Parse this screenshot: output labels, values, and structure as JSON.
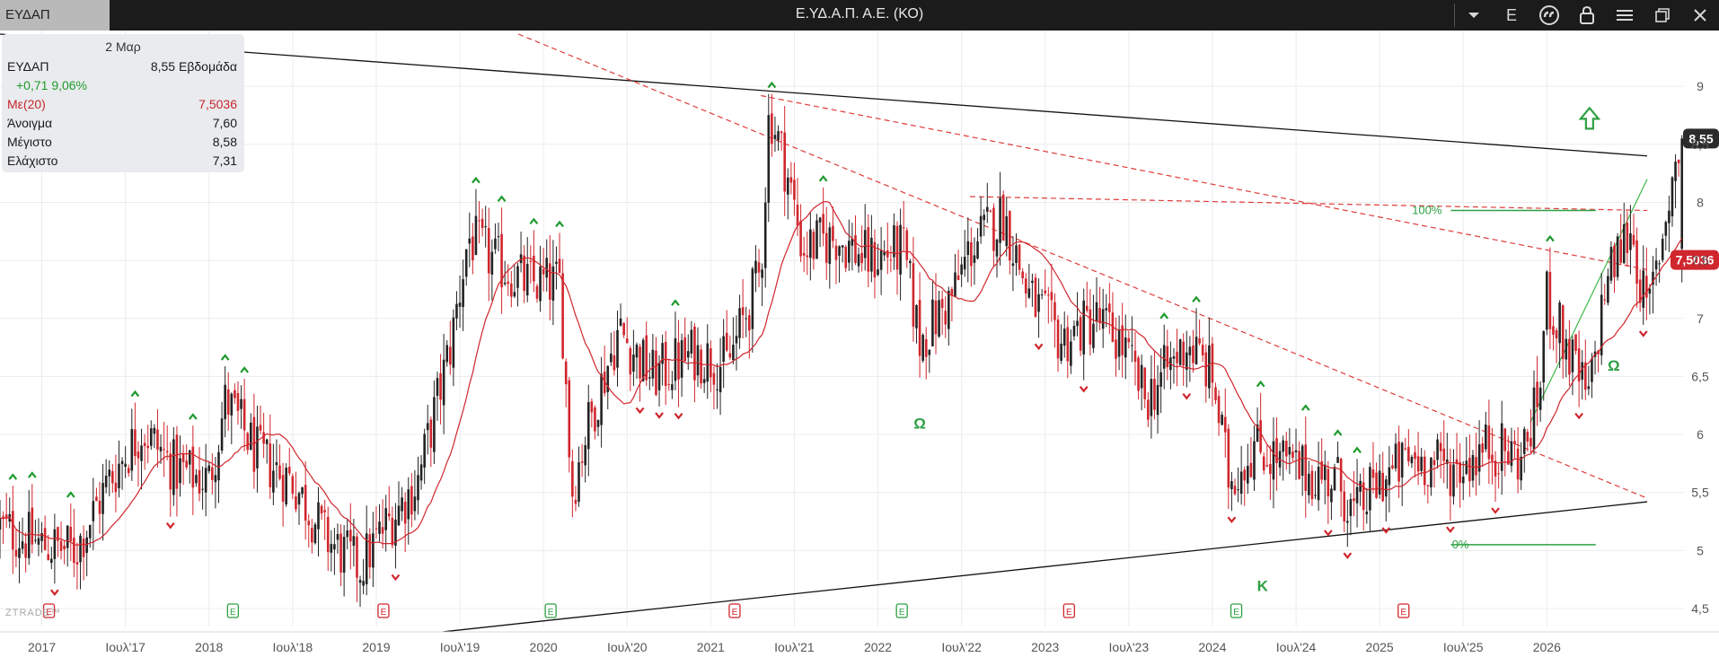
{
  "toolbar": {
    "symbol_tab": "ΕΥΔΑΠ",
    "title": "Ε.ΥΔ.Α.Π. Α.Ε. (ΚΟ)",
    "icons": [
      "dropdown-arrow-icon",
      "letter-e-icon",
      "quote-icon",
      "lock-icon",
      "hamburger-menu-icon",
      "restore-window-icon",
      "close-icon"
    ],
    "e_label": "E"
  },
  "info_panel": {
    "date": "2 Μαρ",
    "symbol": "ΕΥΔΑΠ",
    "last": "8,55 Εβδομάδα",
    "change": "+0,71 9,06%",
    "ma_label": "Με(20)",
    "ma_value": "7,5036",
    "open_label": "Άνοιγμα",
    "open_value": "7,60",
    "high_label": "Μέγιστο",
    "high_value": "8,58",
    "low_label": "Ελάχιστο",
    "low_value": "7,31"
  },
  "colors": {
    "up": "#222222",
    "down": "#d0262d",
    "ma": "#d0262d",
    "trendline": "#111111",
    "fib": "#2ea043",
    "marker_up": "#1f9a2d",
    "marker_down": "#d0262d"
  },
  "chart_data": {
    "type": "candlestick",
    "period": "weekly",
    "x_ticks": [
      "2017",
      "Ιουλ'17",
      "2018",
      "Ιουλ'18",
      "2019",
      "Ιουλ'19",
      "2020",
      "Ιουλ'20",
      "2021",
      "Ιουλ'21",
      "2022",
      "Ιουλ'22",
      "2023",
      "Ιουλ'23",
      "2024",
      "Ιουλ'24",
      "2025",
      "Ιουλ'25",
      "2026"
    ],
    "y_ticks": [
      "4,5",
      "5",
      "5,5",
      "6",
      "6,5",
      "7",
      "7,5",
      "8",
      "8,5",
      "9"
    ],
    "ylim": [
      4.3,
      9.3
    ],
    "x_start": 2016.75,
    "x_end": 2026.6,
    "last_price_label": "8,55",
    "last_price": 8.55,
    "ma_label": "7,5036",
    "ma_value": 7.5036,
    "ma_period": 20,
    "anchors": [
      {
        "x": 2016.75,
        "y": 5.2
      },
      {
        "x": 2017.0,
        "y": 5.05
      },
      {
        "x": 2017.2,
        "y": 5.0
      },
      {
        "x": 2017.4,
        "y": 5.6
      },
      {
        "x": 2017.6,
        "y": 6.05
      },
      {
        "x": 2017.8,
        "y": 5.7
      },
      {
        "x": 2018.0,
        "y": 5.6
      },
      {
        "x": 2018.1,
        "y": 6.3
      },
      {
        "x": 2018.3,
        "y": 5.8
      },
      {
        "x": 2018.5,
        "y": 5.6
      },
      {
        "x": 2018.7,
        "y": 5.1
      },
      {
        "x": 2018.9,
        "y": 4.85
      },
      {
        "x": 2019.05,
        "y": 5.2
      },
      {
        "x": 2019.25,
        "y": 5.6
      },
      {
        "x": 2019.45,
        "y": 6.8
      },
      {
        "x": 2019.55,
        "y": 7.7
      },
      {
        "x": 2019.7,
        "y": 7.5
      },
      {
        "x": 2019.9,
        "y": 7.3
      },
      {
        "x": 2020.1,
        "y": 7.3
      },
      {
        "x": 2020.17,
        "y": 5.5
      },
      {
        "x": 2020.25,
        "y": 6.0
      },
      {
        "x": 2020.45,
        "y": 6.9
      },
      {
        "x": 2020.65,
        "y": 6.5
      },
      {
        "x": 2020.9,
        "y": 6.7
      },
      {
        "x": 2021.1,
        "y": 6.6
      },
      {
        "x": 2021.3,
        "y": 7.4
      },
      {
        "x": 2021.35,
        "y": 8.8
      },
      {
        "x": 2021.45,
        "y": 8.3
      },
      {
        "x": 2021.55,
        "y": 7.6
      },
      {
        "x": 2021.75,
        "y": 7.7
      },
      {
        "x": 2021.95,
        "y": 7.5
      },
      {
        "x": 2022.15,
        "y": 7.6
      },
      {
        "x": 2022.25,
        "y": 6.8
      },
      {
        "x": 2022.45,
        "y": 7.2
      },
      {
        "x": 2022.55,
        "y": 7.6
      },
      {
        "x": 2022.75,
        "y": 7.9
      },
      {
        "x": 2022.9,
        "y": 7.2
      },
      {
        "x": 2023.1,
        "y": 6.8
      },
      {
        "x": 2023.3,
        "y": 7.0
      },
      {
        "x": 2023.45,
        "y": 6.8
      },
      {
        "x": 2023.6,
        "y": 6.3
      },
      {
        "x": 2023.85,
        "y": 6.8
      },
      {
        "x": 2024.0,
        "y": 6.5
      },
      {
        "x": 2024.1,
        "y": 5.6
      },
      {
        "x": 2024.25,
        "y": 5.9
      },
      {
        "x": 2024.5,
        "y": 5.7
      },
      {
        "x": 2024.75,
        "y": 5.6
      },
      {
        "x": 2024.85,
        "y": 5.3
      },
      {
        "x": 2025.0,
        "y": 5.6
      },
      {
        "x": 2025.2,
        "y": 5.8
      },
      {
        "x": 2025.45,
        "y": 5.7
      },
      {
        "x": 2025.65,
        "y": 5.9
      },
      {
        "x": 2025.85,
        "y": 5.8
      },
      {
        "x": 2025.95,
        "y": 6.3
      },
      {
        "x": 2026.0,
        "y": 7.2
      },
      {
        "x": 2026.1,
        "y": 6.8
      },
      {
        "x": 2026.25,
        "y": 6.3
      },
      {
        "x": 2026.35,
        "y": 7.3
      },
      {
        "x": 2026.5,
        "y": 7.8
      },
      {
        "x": 2026.6,
        "y": 7.0
      },
      {
        "x": 2026.75,
        "y": 8.2
      },
      {
        "x": 2026.82,
        "y": 8.55
      }
    ],
    "trendlines": [
      {
        "style": "solid",
        "color": "black",
        "p1": {
          "x": 2016.75,
          "y": 9.45
        },
        "p2": {
          "x": 2026.6,
          "y": 8.4
        }
      },
      {
        "style": "solid",
        "color": "black",
        "p1": {
          "x": 2019.4,
          "y": 4.3
        },
        "p2": {
          "x": 2026.6,
          "y": 5.42
        }
      },
      {
        "style": "dashed",
        "color": "red",
        "p1": {
          "x": 2019.85,
          "y": 9.45
        },
        "p2": {
          "x": 2026.6,
          "y": 5.45
        }
      },
      {
        "style": "dashed",
        "color": "red",
        "p1": {
          "x": 2021.3,
          "y": 8.92
        },
        "p2": {
          "x": 2026.6,
          "y": 7.42
        }
      },
      {
        "style": "dashed",
        "color": "red",
        "p1": {
          "x": 2022.55,
          "y": 8.05
        },
        "p2": {
          "x": 2026.6,
          "y": 7.93
        }
      },
      {
        "style": "solid",
        "color": "green",
        "p1": {
          "x": 2025.9,
          "y": 6.1
        },
        "p2": {
          "x": 2026.6,
          "y": 8.2
        }
      }
    ],
    "fib": {
      "levels": [
        {
          "label": "100%",
          "y": 7.93
        },
        {
          "label": "0%",
          "y": 5.05
        }
      ],
      "x_start": 2023.6,
      "x_end": 2026.4
    },
    "pattern_labels": [
      {
        "text": "Ω",
        "x": 2022.25,
        "y": 6.05
      },
      {
        "text": "Ω",
        "x": 2026.4,
        "y": 6.55
      },
      {
        "text": "Κ",
        "x": 2024.3,
        "y": 4.65
      }
    ],
    "breakout_arrow": {
      "x": 2026.25,
      "y": 8.72
    },
    "event_markers": {
      "label": "E",
      "items": [
        {
          "x": 2017.0,
          "color": "red"
        },
        {
          "x": 2018.1,
          "color": "green"
        },
        {
          "x": 2019.0,
          "color": "red"
        },
        {
          "x": 2020.0,
          "color": "green"
        },
        {
          "x": 2021.1,
          "color": "red"
        },
        {
          "x": 2022.1,
          "color": "green"
        },
        {
          "x": 2023.1,
          "color": "red"
        },
        {
          "x": 2024.1,
          "color": "green"
        },
        {
          "x": 2025.1,
          "color": "red"
        }
      ]
    },
    "brand": "ZTRADE™"
  }
}
